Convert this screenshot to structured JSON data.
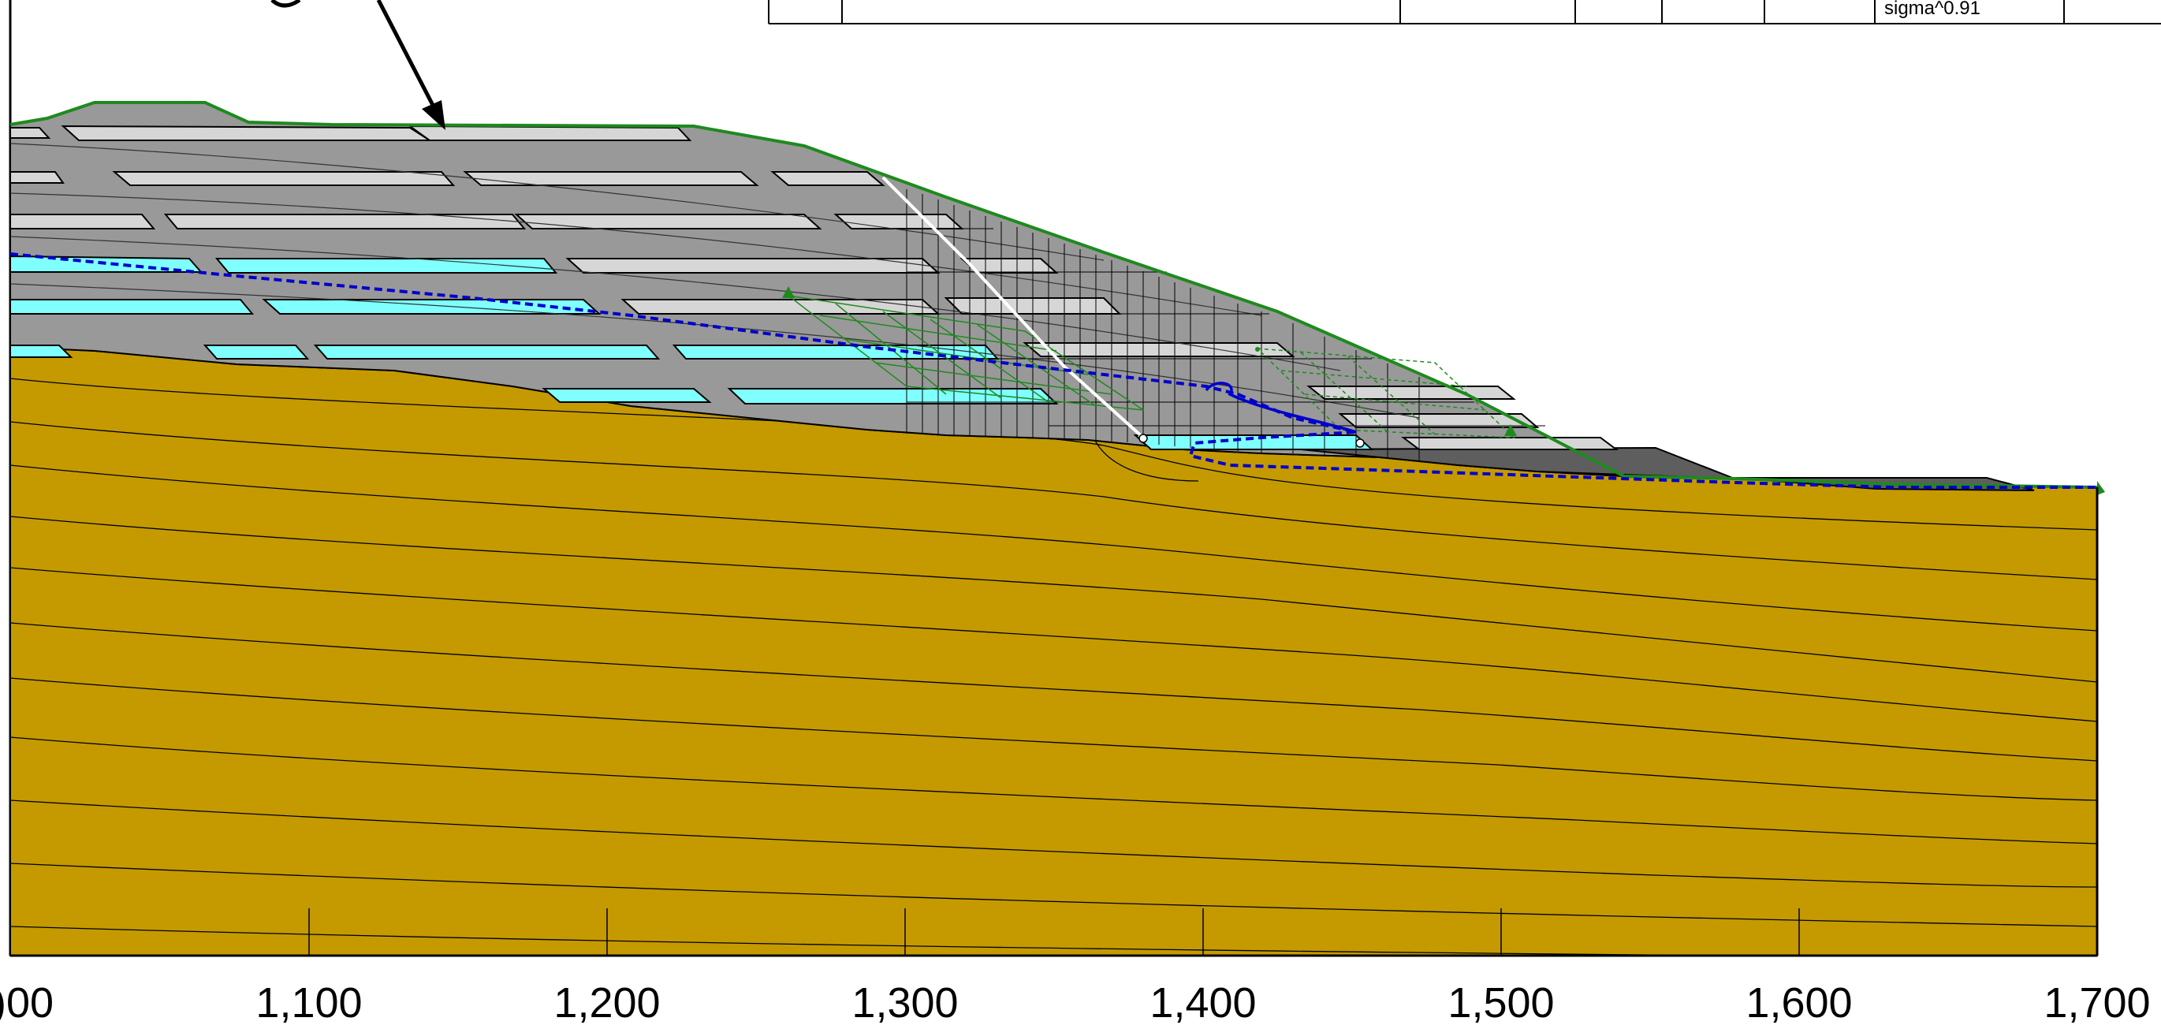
{
  "figure": {
    "x_axis": {
      "tick_labels": [
        "1,100",
        "1,200",
        "1,300",
        "1,400",
        "1,500",
        "1,600",
        "1,700"
      ],
      "partial_left_label": ")00"
    },
    "property_table": {
      "visible_cell_text": "sigma^0.91"
    },
    "colors": {
      "foundation": "#C49A00",
      "fill_material": "#999999",
      "light_layer": "#D6D6D6",
      "water_layer": "#80FFFF",
      "dark_layer": "#5E5E5E",
      "ground_surface": "#1E8A1E",
      "phreatic_line": "#0000CC",
      "slip_surface": "#FFFFFF"
    }
  }
}
